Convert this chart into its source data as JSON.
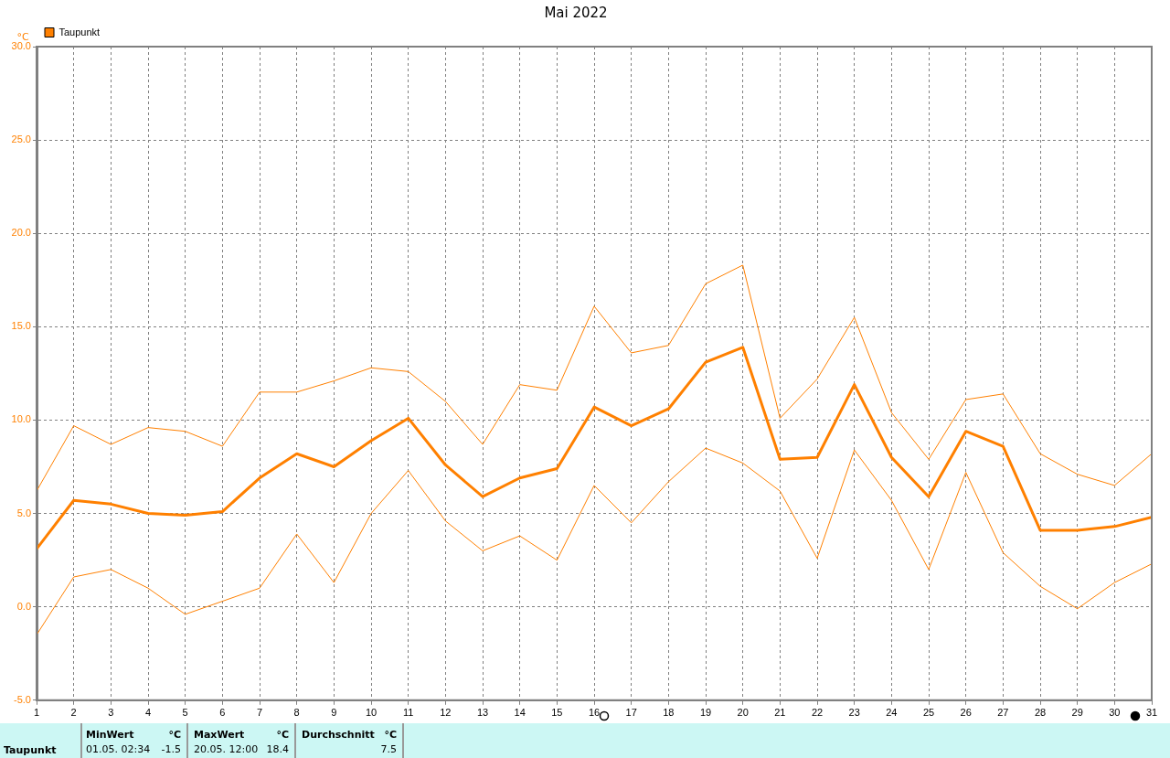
{
  "chart_data": {
    "type": "line",
    "title": "Mai 2022",
    "ylabel": "°C",
    "x": [
      1,
      2,
      3,
      4,
      5,
      6,
      7,
      8,
      9,
      10,
      11,
      12,
      13,
      14,
      15,
      16,
      17,
      18,
      19,
      20,
      21,
      22,
      23,
      24,
      25,
      26,
      27,
      28,
      29,
      30,
      31
    ],
    "series": [
      {
        "name": "Taupunkt",
        "color": "#ff8000",
        "values": [
          3.1,
          5.7,
          5.5,
          5.0,
          4.9,
          5.1,
          6.9,
          8.2,
          7.5,
          8.9,
          10.1,
          7.6,
          5.9,
          6.9,
          7.4,
          10.7,
          9.7,
          10.6,
          13.1,
          13.9,
          7.9,
          8.0,
          11.9,
          8.0,
          5.9,
          9.4,
          8.6,
          4.1,
          4.1,
          4.3,
          4.8
        ]
      },
      {
        "color": "#ff8000",
        "values": [
          6.2,
          9.7,
          8.7,
          9.6,
          9.4,
          8.6,
          11.5,
          11.5,
          12.1,
          12.8,
          12.6,
          11.0,
          8.7,
          11.9,
          11.6,
          16.1,
          13.6,
          14.0,
          17.3,
          18.3,
          10.1,
          12.2,
          15.5,
          10.4,
          7.9,
          11.1,
          11.4,
          8.2,
          7.1,
          6.5,
          8.2
        ]
      },
      {
        "color": "#ff8000",
        "values": [
          -1.5,
          1.6,
          2.0,
          1.0,
          -0.4,
          0.3,
          1.0,
          3.9,
          1.3,
          5.0,
          7.3,
          4.6,
          3.0,
          3.8,
          2.5,
          6.5,
          4.5,
          6.7,
          8.5,
          7.7,
          6.2,
          2.6,
          8.4,
          5.7,
          2.0,
          7.2,
          2.9,
          1.1,
          -0.1,
          1.3,
          2.3
        ]
      }
    ],
    "xlim": [
      1,
      31
    ],
    "xticks": [
      1,
      2,
      3,
      4,
      5,
      6,
      7,
      8,
      9,
      10,
      11,
      12,
      13,
      14,
      15,
      16,
      17,
      18,
      19,
      20,
      21,
      22,
      23,
      24,
      25,
      26,
      27,
      28,
      29,
      30,
      31
    ],
    "ylim": [
      -5,
      30
    ],
    "yticks": [
      {
        "value": -5,
        "label": "-5.0"
      },
      {
        "value": 0,
        "label": "0.0"
      },
      {
        "value": 5,
        "label": "5.0"
      },
      {
        "value": 10,
        "label": "10.0"
      },
      {
        "value": 15,
        "label": "15.0"
      },
      {
        "value": 20,
        "label": "20.0"
      },
      {
        "value": 25,
        "label": "25.0"
      },
      {
        "value": 30,
        "label": "30.0"
      }
    ],
    "grid": true,
    "legend": "top left",
    "marker": "none",
    "line_style": "solid",
    "annotations": [
      "Taupunkt",
      "MinWert",
      "°C",
      "01.05.  02:34",
      "-1.5",
      "MaxWert",
      "°C",
      "20.05.  12:00",
      "18.4",
      "Durchschnitt",
      "°C",
      "7.5"
    ]
  }
}
